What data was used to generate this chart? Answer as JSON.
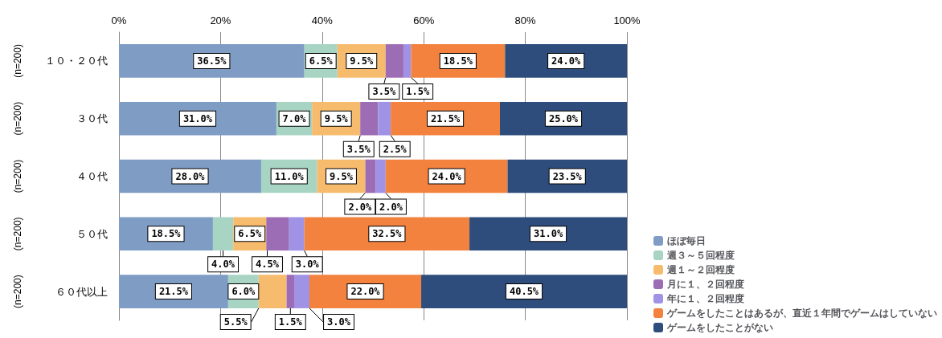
{
  "chart_data": {
    "type": "bar",
    "orientation": "horizontal",
    "stacked": true,
    "categories": [
      "１０・２０代",
      "３０代",
      "４０代",
      "５０代",
      "６０代以上"
    ],
    "xlim": [
      0,
      100
    ],
    "xticks": [
      {
        "value": 0,
        "label": "0%"
      },
      {
        "value": 20,
        "label": "20%"
      },
      {
        "value": 40,
        "label": "40%"
      },
      {
        "value": 60,
        "label": "60%"
      },
      {
        "value": 80,
        "label": "80%"
      },
      {
        "value": 100,
        "label": "100%"
      }
    ],
    "grid": "x",
    "legend": "bottom right",
    "annotations": [
      "(n=200)",
      "(n=200)",
      "(n=200)",
      "(n=200)",
      "(n=200)"
    ],
    "series": [
      {
        "name": "ほぼ毎日",
        "color": "#7f9cc4",
        "values": [
          36.5,
          31.0,
          28.0,
          18.5,
          21.5
        ],
        "value_labels": [
          "36.5%",
          "31.0%",
          "28.0%",
          "18.5%",
          "21.5%"
        ]
      },
      {
        "name": "週３～５回程度",
        "color": "#a8d4c4",
        "values": [
          6.5,
          7.0,
          11.0,
          4.0,
          6.0
        ],
        "value_labels": [
          "6.5%",
          "7.0%",
          "11.0%",
          "4.0%",
          "6.0%"
        ]
      },
      {
        "name": "週１～２回程度",
        "color": "#f7bb6e",
        "values": [
          9.5,
          9.5,
          9.5,
          6.5,
          5.5
        ],
        "value_labels": [
          "9.5%",
          "9.5%",
          "9.5%",
          "6.5%",
          "5.5%"
        ]
      },
      {
        "name": "月に１、２回程度",
        "color": "#9c6cb4",
        "values": [
          3.5,
          3.5,
          2.0,
          4.5,
          1.5
        ],
        "value_labels": [
          "3.5%",
          "3.5%",
          "2.0%",
          "4.5%",
          "1.5%"
        ]
      },
      {
        "name": "年に１、２回程度",
        "color": "#a092e4",
        "values": [
          1.5,
          2.5,
          2.0,
          3.0,
          3.0
        ],
        "value_labels": [
          "1.5%",
          "2.5%",
          "2.0%",
          "3.0%",
          "3.0%"
        ]
      },
      {
        "name": "ゲームをしたことはあるが、直近１年間でゲームはしていない",
        "color": "#f2823e",
        "values": [
          18.5,
          21.5,
          24.0,
          32.5,
          22.0
        ],
        "value_labels": [
          "18.5%",
          "21.5%",
          "24.0%",
          "32.5%",
          "22.0%"
        ]
      },
      {
        "name": "ゲームをしたことがない",
        "color": "#2e4d7c",
        "values": [
          24.0,
          25.0,
          23.5,
          31.0,
          40.5
        ],
        "value_labels": [
          "24.0%",
          "25.0%",
          "23.5%",
          "31.0%",
          "40.5%"
        ]
      }
    ]
  }
}
